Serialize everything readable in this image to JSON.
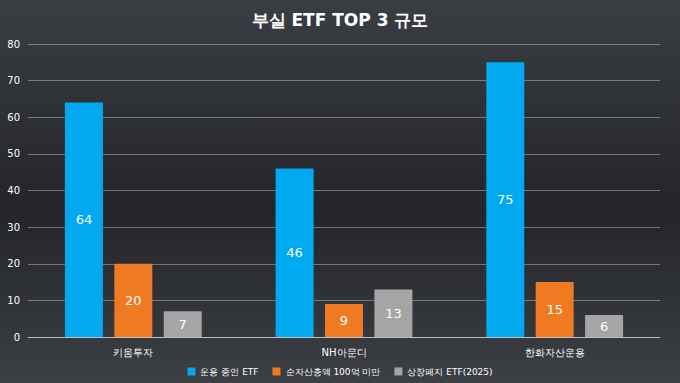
{
  "chart_data": {
    "type": "bar",
    "title": "부실 ETF TOP 3 규모",
    "categories": [
      "키움투자",
      "NH아문디",
      "한화자산운용"
    ],
    "series": [
      {
        "name": "운용 중인 ETF",
        "color": "#00a9f0",
        "values": [
          64,
          46,
          75
        ]
      },
      {
        "name": "순자산총액 100억 미만",
        "color": "#f07a22",
        "values": [
          20,
          9,
          15
        ]
      },
      {
        "name": "상장폐지 ETF(2025)",
        "color": "#a5a5a5",
        "values": [
          7,
          13,
          6
        ]
      }
    ],
    "ylim": [
      0,
      80
    ],
    "yticks": [
      0,
      10,
      20,
      30,
      40,
      50,
      60,
      70,
      80
    ],
    "grid": true,
    "legend": "bottom",
    "data_labels": true
  }
}
